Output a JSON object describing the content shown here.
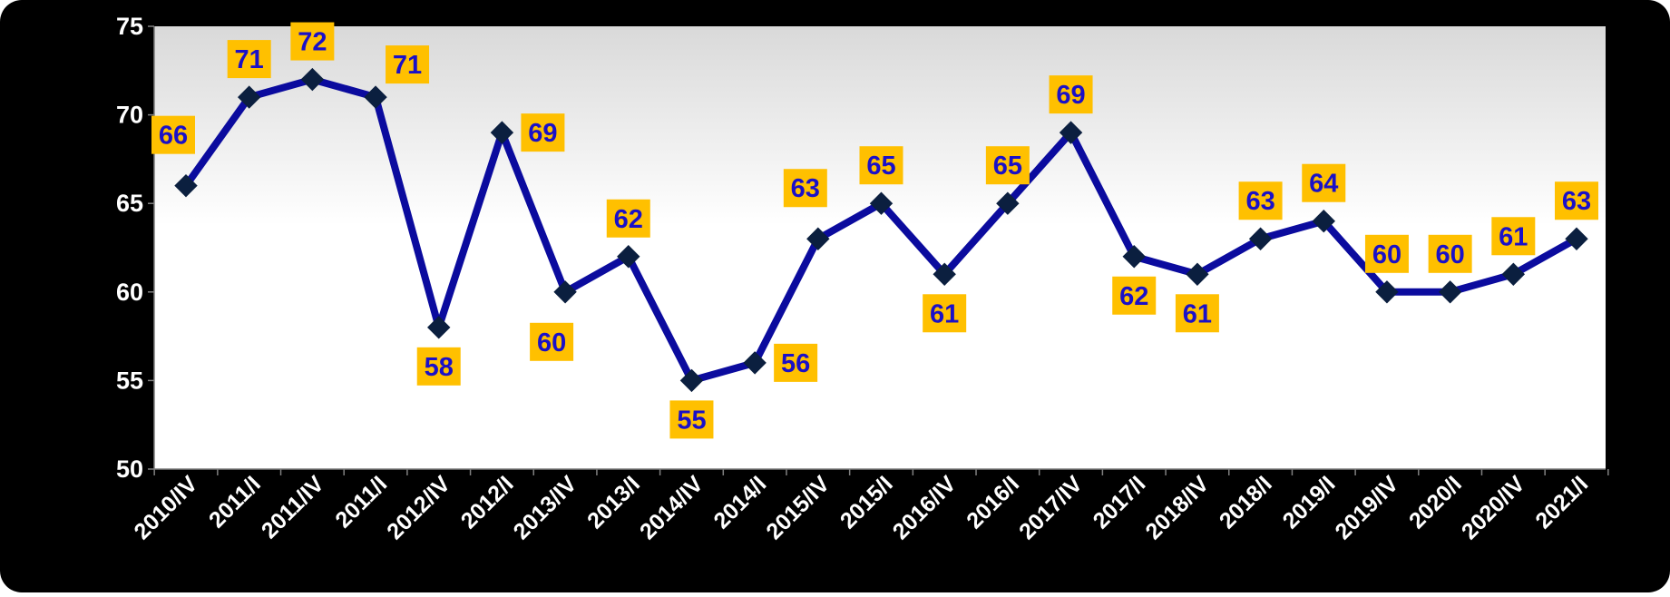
{
  "colors": {
    "background": "#000000",
    "plot_top": "#d9d9d9",
    "plot_bottom": "#ffffff",
    "line": "#0b0b9e",
    "marker": "#0b1f3f",
    "label_box": "#ffc000",
    "label_text": "#1a10c8",
    "axis_text": "#ffffff"
  },
  "chart_data": {
    "type": "line",
    "title": "",
    "xlabel": "",
    "ylabel": "",
    "ylim": [
      50,
      75
    ],
    "yticks": [
      50,
      55,
      60,
      65,
      70,
      75
    ],
    "grid": false,
    "legend": "none",
    "categories": [
      "2010/IV",
      "2011/I",
      "2011/IV",
      "2011/I",
      "2012/IV",
      "2012/I",
      "2013/IV",
      "2013/I",
      "2014/IV",
      "2014/I",
      "2015/IV",
      "2015/I",
      "2016/IV",
      "2016/I",
      "2017/IV",
      "2017/I",
      "2018/IV",
      "2018/I",
      "2019/I",
      "2019/IV",
      "2020/I",
      "2020/IV",
      "2021/I"
    ],
    "series": [
      {
        "values": [
          66,
          71,
          72,
          71,
          58,
          69,
          60,
          62,
          55,
          56,
          63,
          65,
          61,
          65,
          69,
          62,
          61,
          63,
          64,
          60,
          60,
          61,
          63
        ],
        "marker": "diamond",
        "data_labels": true
      }
    ]
  }
}
